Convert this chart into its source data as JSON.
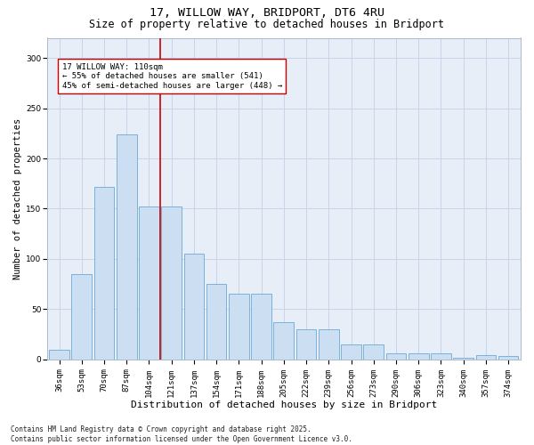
{
  "title": "17, WILLOW WAY, BRIDPORT, DT6 4RU",
  "subtitle": "Size of property relative to detached houses in Bridport",
  "xlabel": "Distribution of detached houses by size in Bridport",
  "ylabel": "Number of detached properties",
  "categories": [
    "36sqm",
    "53sqm",
    "70sqm",
    "87sqm",
    "104sqm",
    "121sqm",
    "137sqm",
    "154sqm",
    "171sqm",
    "188sqm",
    "205sqm",
    "222sqm",
    "239sqm",
    "256sqm",
    "273sqm",
    "290sqm",
    "306sqm",
    "323sqm",
    "340sqm",
    "357sqm",
    "374sqm"
  ],
  "values": [
    10,
    85,
    172,
    224,
    152,
    152,
    105,
    75,
    65,
    65,
    37,
    30,
    30,
    15,
    15,
    6,
    6,
    6,
    2,
    4,
    3
  ],
  "bar_color": "#ccdff2",
  "bar_edge_color": "#6aaad4",
  "vline_x": 4.5,
  "vline_color": "#cc0000",
  "annotation_text": "17 WILLOW WAY: 110sqm\n← 55% of detached houses are smaller (541)\n45% of semi-detached houses are larger (448) →",
  "annotation_box_color": "#ffffff",
  "annotation_box_edge": "#cc0000",
  "ylim": [
    0,
    320
  ],
  "yticks": [
    0,
    50,
    100,
    150,
    200,
    250,
    300
  ],
  "grid_color": "#c8d4e8",
  "bg_color": "#e8eef8",
  "footer": "Contains HM Land Registry data © Crown copyright and database right 2025.\nContains public sector information licensed under the Open Government Licence v3.0.",
  "title_fontsize": 9.5,
  "subtitle_fontsize": 8.5,
  "xlabel_fontsize": 8,
  "ylabel_fontsize": 7.5,
  "tick_fontsize": 6.5,
  "annotation_fontsize": 6.5,
  "footer_fontsize": 5.5
}
